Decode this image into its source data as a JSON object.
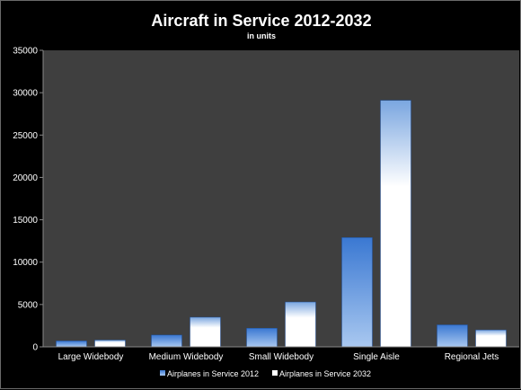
{
  "chart_data": {
    "type": "bar",
    "title": "Aircraft in Service 2012-2032",
    "subtitle": "in units",
    "categories": [
      "Large Widebody",
      "Medium Widebody",
      "Small Widebody",
      "Single Aisle",
      "Regional Jets"
    ],
    "series": [
      {
        "name": "Airplanes in Service 2012",
        "values": [
          700,
          1400,
          2200,
          12900,
          2600
        ]
      },
      {
        "name": "Airplanes in Service 2032",
        "values": [
          800,
          3500,
          5300,
          29100,
          2000
        ]
      }
    ],
    "ylim": [
      0,
      35000
    ],
    "yticks": [
      "0",
      "5000",
      "10000",
      "15000",
      "20000",
      "25000",
      "30000",
      "35000"
    ],
    "grid": false,
    "legend_position": "bottom",
    "colors": {
      "series_2012": "#3a78d2",
      "series_2012_light": "#a9c8f0",
      "series_2032": "#ffffff",
      "series_2032_tint": "#7aa6e0",
      "plot_bg": "#3f3f3f",
      "page_bg": "#000000"
    }
  }
}
